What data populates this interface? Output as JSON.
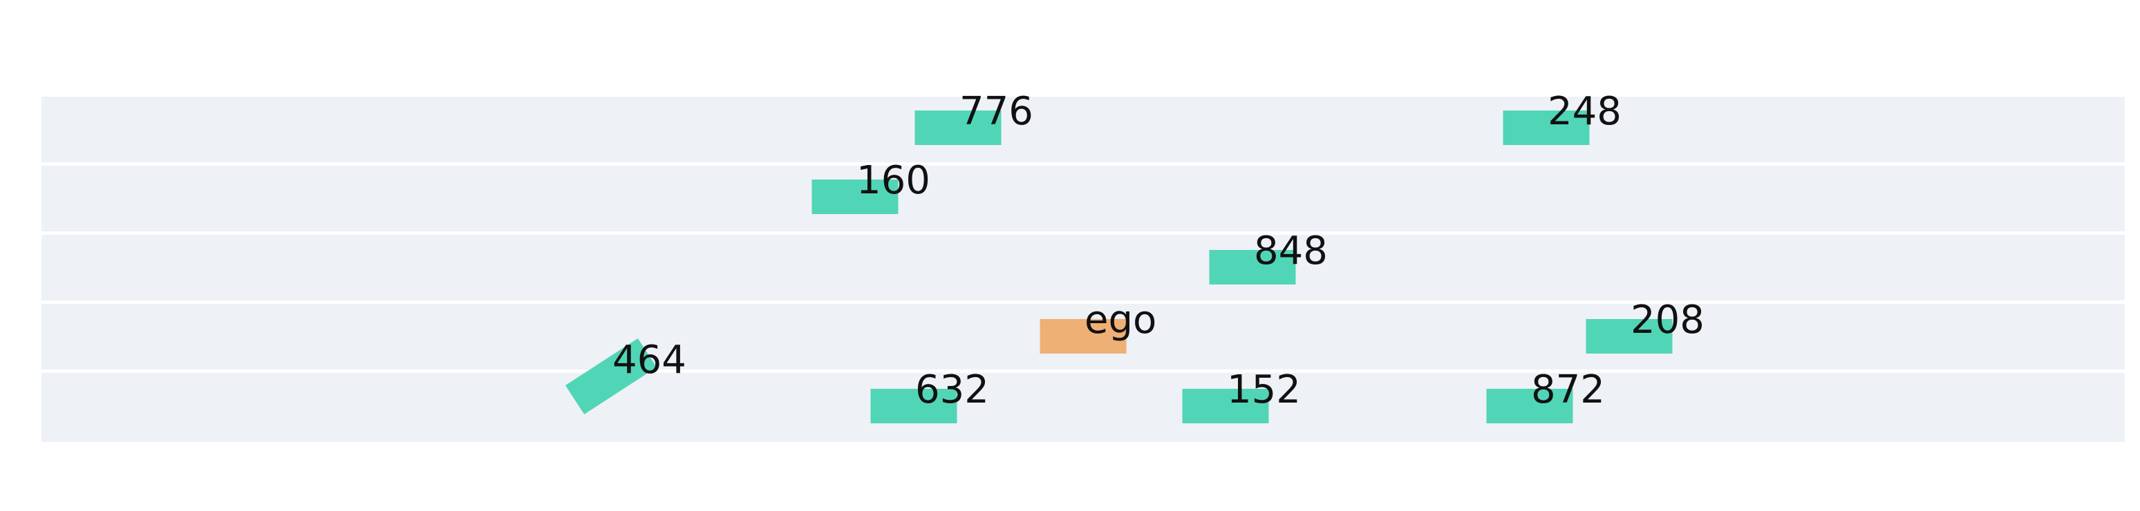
{
  "scene": {
    "lanes": 5,
    "colors": {
      "lane": "#eef1f6",
      "divider": "#ffffff",
      "vehicle": "#3fd1b0",
      "ego": "#eda866"
    },
    "vehicles": [
      {
        "id": "776",
        "label": "776",
        "lane": 0,
        "kind": "vehicle"
      },
      {
        "id": "248",
        "label": "248",
        "lane": 0,
        "kind": "vehicle"
      },
      {
        "id": "160",
        "label": "160",
        "lane": 1,
        "kind": "vehicle"
      },
      {
        "id": "848",
        "label": "848",
        "lane": 2,
        "kind": "vehicle"
      },
      {
        "id": "ego",
        "label": "ego",
        "lane": 3,
        "kind": "ego"
      },
      {
        "id": "208",
        "label": "208",
        "lane": 3,
        "kind": "vehicle"
      },
      {
        "id": "464",
        "label": "464",
        "lane": 4,
        "kind": "vehicle",
        "heading_deg": -33
      },
      {
        "id": "632",
        "label": "632",
        "lane": 4,
        "kind": "vehicle"
      },
      {
        "id": "152",
        "label": "152",
        "lane": 4,
        "kind": "vehicle"
      },
      {
        "id": "872",
        "label": "872",
        "lane": 4,
        "kind": "vehicle"
      }
    ]
  }
}
